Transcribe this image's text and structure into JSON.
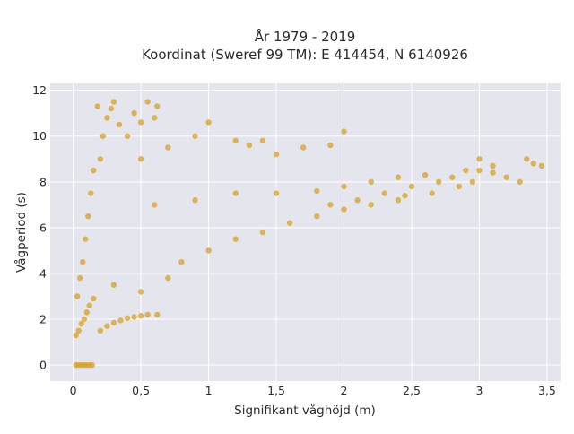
{
  "chart_data": {
    "type": "scatter",
    "title": "År 1979 - 2019",
    "subtitle": "Koordinat (Sweref 99 TM): E 414454, N 6140926",
    "xlabel": "Signifikant våghöjd (m)",
    "ylabel": "Vågperiod (s)",
    "xlim": [
      -0.17,
      3.6
    ],
    "ylim": [
      -0.7,
      12.3
    ],
    "x_ticks": [
      0,
      0.5,
      1,
      1.5,
      2,
      2.5,
      3,
      3.5
    ],
    "x_tick_labels": [
      "0",
      "0,5",
      "1",
      "1,5",
      "2",
      "2,5",
      "3",
      "3,5"
    ],
    "y_ticks": [
      0,
      2,
      4,
      6,
      8,
      10,
      12
    ],
    "y_tick_labels": [
      "0",
      "2",
      "4",
      "6",
      "8",
      "10",
      "12"
    ],
    "grid": true,
    "legend": "none",
    "colors": {
      "marker": "#d4a221",
      "plot_bg": "#e5e5ee",
      "grid": "#ffffff"
    },
    "series": [
      {
        "points": [
          [
            0.02,
            0
          ],
          [
            0.04,
            0
          ],
          [
            0.06,
            0
          ],
          [
            0.08,
            0
          ],
          [
            0.1,
            0
          ],
          [
            0.12,
            0
          ],
          [
            0.14,
            0
          ],
          [
            0.02,
            1.3
          ],
          [
            0.04,
            1.5
          ],
          [
            0.06,
            1.8
          ],
          [
            0.08,
            2.0
          ],
          [
            0.1,
            2.3
          ],
          [
            0.12,
            2.6
          ],
          [
            0.15,
            2.9
          ],
          [
            0.03,
            3.0
          ],
          [
            0.05,
            3.8
          ],
          [
            0.07,
            4.5
          ],
          [
            0.09,
            5.5
          ],
          [
            0.11,
            6.5
          ],
          [
            0.13,
            7.5
          ],
          [
            0.15,
            8.5
          ],
          [
            0.2,
            1.5
          ],
          [
            0.25,
            1.7
          ],
          [
            0.3,
            1.85
          ],
          [
            0.35,
            1.95
          ],
          [
            0.4,
            2.05
          ],
          [
            0.45,
            2.1
          ],
          [
            0.5,
            2.15
          ],
          [
            0.55,
            2.2
          ],
          [
            0.62,
            2.2
          ],
          [
            0.2,
            9.0
          ],
          [
            0.22,
            10.0
          ],
          [
            0.25,
            10.8
          ],
          [
            0.28,
            11.2
          ],
          [
            0.3,
            11.5
          ],
          [
            0.18,
            11.3
          ],
          [
            0.34,
            10.5
          ],
          [
            0.4,
            10.0
          ],
          [
            0.45,
            11.0
          ],
          [
            0.5,
            10.6
          ],
          [
            0.55,
            11.5
          ],
          [
            0.62,
            11.3
          ],
          [
            0.6,
            10.8
          ],
          [
            0.3,
            3.5
          ],
          [
            0.5,
            3.2
          ],
          [
            0.7,
            3.8
          ],
          [
            0.8,
            4.5
          ],
          [
            1.0,
            5.0
          ],
          [
            1.2,
            5.5
          ],
          [
            1.4,
            5.8
          ],
          [
            1.6,
            6.2
          ],
          [
            1.8,
            6.5
          ],
          [
            2.0,
            6.8
          ],
          [
            2.2,
            7.0
          ],
          [
            2.4,
            7.2
          ],
          [
            0.5,
            9.0
          ],
          [
            0.7,
            9.5
          ],
          [
            0.9,
            10.0
          ],
          [
            1.0,
            10.6
          ],
          [
            1.2,
            9.8
          ],
          [
            1.5,
            9.2
          ],
          [
            1.7,
            9.5
          ],
          [
            2.0,
            10.2
          ],
          [
            1.9,
            9.6
          ],
          [
            1.4,
            9.8
          ],
          [
            1.3,
            9.6
          ],
          [
            0.6,
            7.0
          ],
          [
            0.9,
            7.2
          ],
          [
            1.2,
            7.5
          ],
          [
            1.5,
            7.5
          ],
          [
            1.8,
            7.6
          ],
          [
            2.0,
            7.8
          ],
          [
            2.2,
            8.0
          ],
          [
            2.4,
            8.2
          ],
          [
            2.6,
            8.3
          ],
          [
            2.5,
            7.8
          ],
          [
            2.7,
            8.0
          ],
          [
            2.8,
            8.2
          ],
          [
            3.0,
            8.5
          ],
          [
            3.1,
            8.4
          ],
          [
            3.2,
            8.2
          ],
          [
            2.9,
            8.5
          ],
          [
            3.3,
            8.0
          ],
          [
            3.35,
            9.0
          ],
          [
            3.4,
            8.8
          ],
          [
            3.46,
            8.7
          ],
          [
            3.0,
            9.0
          ],
          [
            3.1,
            8.7
          ],
          [
            2.95,
            8.0
          ],
          [
            2.85,
            7.8
          ],
          [
            2.65,
            7.5
          ],
          [
            2.45,
            7.4
          ],
          [
            2.3,
            7.5
          ],
          [
            2.1,
            7.2
          ],
          [
            1.9,
            7.0
          ]
        ]
      }
    ]
  }
}
